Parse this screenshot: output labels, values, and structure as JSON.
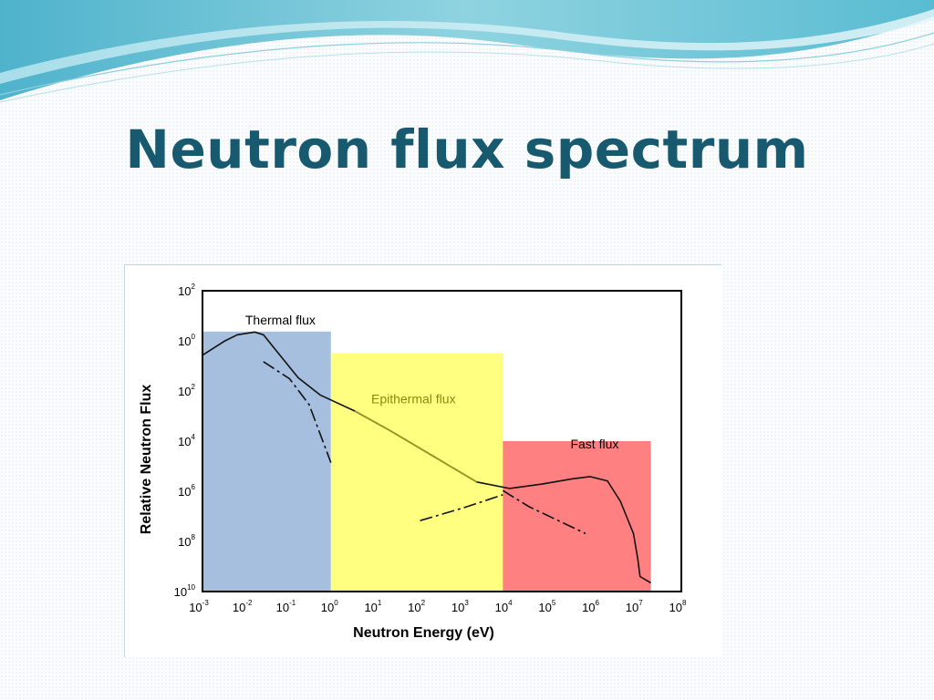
{
  "slide": {
    "title": "Neutron flux spectrum"
  },
  "colors": {
    "title": "#17596e",
    "thermal_region": "#a7bfdf",
    "epithermal_region": "#ffff80",
    "fast_region": "#ff8080",
    "curve": "#000000",
    "epithermal_curve": "#9a9a20"
  },
  "chart_data": {
    "type": "line",
    "title": "",
    "xlabel": "Neutron Energy (eV)",
    "ylabel": "Relative Neutron Flux",
    "x_scale": "log",
    "y_scale": "log",
    "xlim_exponents": [
      -3,
      8
    ],
    "ylim_exponents": [
      -12,
      2
    ],
    "x_ticks": [
      {
        "base": "10",
        "exp": "-3"
      },
      {
        "base": "10",
        "exp": "-2"
      },
      {
        "base": "10",
        "exp": "-1"
      },
      {
        "base": "10",
        "exp": "0"
      },
      {
        "base": "10",
        "exp": "1"
      },
      {
        "base": "10",
        "exp": "2"
      },
      {
        "base": "10",
        "exp": "3"
      },
      {
        "base": "10",
        "exp": "4"
      },
      {
        "base": "10",
        "exp": "5"
      },
      {
        "base": "10",
        "exp": "6"
      },
      {
        "base": "10",
        "exp": "7"
      },
      {
        "base": "10",
        "exp": "8"
      }
    ],
    "y_ticks": [
      {
        "base": "10",
        "exp": "2"
      },
      {
        "base": "10",
        "exp": "0"
      },
      {
        "base": "10",
        "exp": "2"
      },
      {
        "base": "10",
        "exp": "4"
      },
      {
        "base": "10",
        "exp": "6"
      },
      {
        "base": "10",
        "exp": "8"
      },
      {
        "base": "10",
        "exp": "10"
      }
    ],
    "regions": [
      {
        "label": "Thermal flux",
        "x_range_exp": [
          -3,
          -0.05
        ],
        "y_top_exp": 0.1,
        "color": "#a7bfdf"
      },
      {
        "label": "Epithermal flux",
        "x_range_exp": [
          -0.05,
          3.9
        ],
        "y_top_exp": -0.9,
        "color": "#ffff80"
      },
      {
        "label": "Fast flux",
        "x_range_exp": [
          3.9,
          7.3
        ],
        "y_top_exp": -5.0,
        "color": "#ff8080"
      }
    ],
    "series": [
      {
        "style": "solid",
        "points_exp": [
          [
            -3,
            -1.0
          ],
          [
            -2.5,
            -0.35
          ],
          [
            -2.2,
            -0.05
          ],
          [
            -1.8,
            0.08
          ],
          [
            -1.6,
            -0.05
          ],
          [
            -1.3,
            -0.8
          ],
          [
            -0.8,
            -2.05
          ],
          [
            -0.3,
            -2.85
          ],
          [
            0.5,
            -3.6
          ],
          [
            1.3,
            -4.5
          ],
          [
            2.3,
            -5.7
          ],
          [
            3.3,
            -6.9
          ],
          [
            4.05,
            -7.2
          ],
          [
            4.8,
            -7.0
          ],
          [
            5.5,
            -6.75
          ],
          [
            5.9,
            -6.65
          ],
          [
            6.3,
            -6.85
          ],
          [
            6.6,
            -7.8
          ],
          [
            6.9,
            -9.3
          ],
          [
            7.0,
            -10.5
          ],
          [
            7.05,
            -11.3
          ],
          [
            7.3,
            -11.6
          ]
        ]
      },
      {
        "style": "dash-dot",
        "points_exp": [
          [
            -1.6,
            -1.3
          ],
          [
            -1.0,
            -2.1
          ],
          [
            -0.55,
            -3.3
          ],
          [
            -0.05,
            -6.0
          ]
        ]
      },
      {
        "style": "dash-dot",
        "points_exp": [
          [
            2.0,
            -8.7
          ],
          [
            3.0,
            -8.1
          ],
          [
            3.9,
            -7.5
          ]
        ]
      },
      {
        "style": "dash-dot",
        "points_exp": [
          [
            3.9,
            -7.3
          ],
          [
            4.5,
            -8.05
          ],
          [
            5.8,
            -9.3
          ]
        ]
      }
    ]
  }
}
